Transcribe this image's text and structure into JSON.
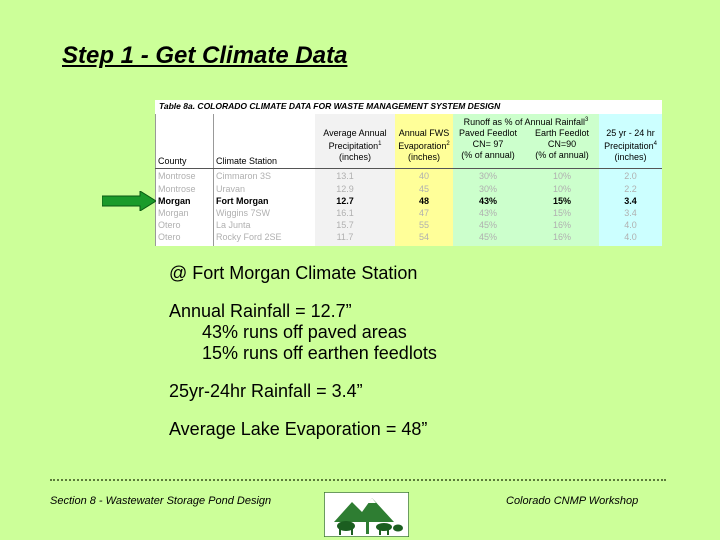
{
  "title": "Step 1 - Get Climate Data",
  "table": {
    "caption": "Table 8a.  COLORADO CLIMATE DATA FOR WASTE MANAGEMENT SYSTEM DESIGN",
    "headers": {
      "county": "County",
      "station": "Climate Station",
      "precip_1": "Average Annual",
      "precip_2": "Precipitation",
      "precip_sup": "1",
      "precip_3": "(inches)",
      "evap_1": "Annual FWS",
      "evap_2": "Evaporation",
      "evap_sup": "2",
      "evap_3": "(inches)",
      "runoff_group": "Runoff as % of Annual Rainfall",
      "runoff_sup": "3",
      "paved_1": "Paved Feedlot",
      "paved_2": "CN= 97",
      "paved_3": "(% of annual)",
      "earth_1": "Earth Feedlot",
      "earth_2": "CN=90",
      "earth_3": "(% of annual)",
      "storm_1": "25 yr - 24 hr",
      "storm_2": "Precipitation",
      "storm_sup": "4",
      "storm_3": "(inches)"
    },
    "rows": [
      {
        "county": "Montrose",
        "station": "Cimmaron 3S",
        "precip": "13.1",
        "evap": "40",
        "paved": "30%",
        "earth": "10%",
        "storm": "2.0"
      },
      {
        "county": "Montrose",
        "station": "Uravan",
        "precip": "12.9",
        "evap": "45",
        "paved": "30%",
        "earth": "10%",
        "storm": "2.2"
      },
      {
        "county": "Morgan",
        "station": "Fort Morgan",
        "precip": "12.7",
        "evap": "48",
        "paved": "43%",
        "earth": "15%",
        "storm": "3.4"
      },
      {
        "county": "Morgan",
        "station": "Wiggins 7SW",
        "precip": "16.1",
        "evap": "47",
        "paved": "43%",
        "earth": "15%",
        "storm": "3.4"
      },
      {
        "county": "Otero",
        "station": "La Junta",
        "precip": "15.7",
        "evap": "55",
        "paved": "45%",
        "earth": "16%",
        "storm": "4.0"
      },
      {
        "county": "Otero",
        "station": "Rocky Ford 2SE",
        "precip": "11.7",
        "evap": "54",
        "paved": "45%",
        "earth": "16%",
        "storm": "4.0"
      }
    ],
    "colors": {
      "precip_col": "#f2f2f2",
      "evap_col": "#ffff99",
      "runoff_col": "#ccffcc",
      "storm_col": "#ccffff"
    }
  },
  "arrow_color": "#1a9b2a",
  "notes": {
    "line1": "@ Fort Morgan Climate Station",
    "line2": "Annual Rainfall = 12.7”",
    "line3": "43% runs off paved areas",
    "line4": "15% runs off earthen feedlots",
    "line5": "25yr-24hr Rainfall = 3.4”",
    "line6": "Average Lake Evaporation = 48”"
  },
  "footer": {
    "left": "Section 8 - Wastewater Storage Pond Design",
    "right": "Colorado CNMP Workshop"
  }
}
